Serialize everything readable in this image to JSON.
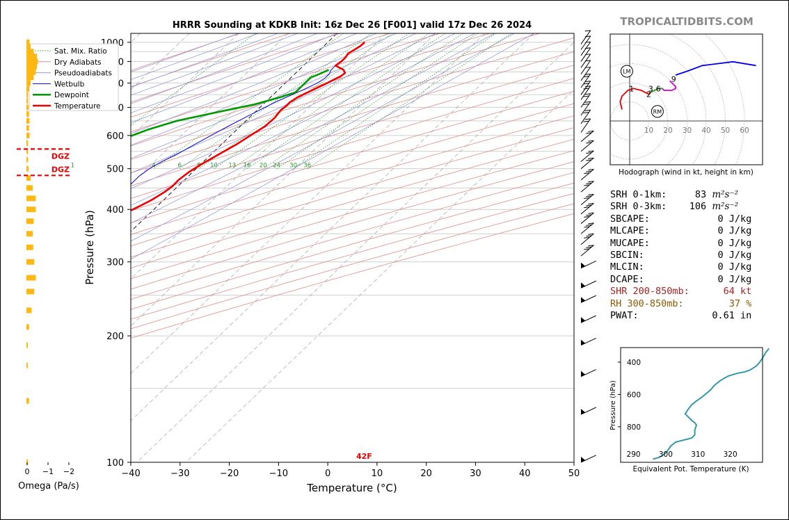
{
  "chart_data": [
    {
      "type": "skewt",
      "title": "HRRR Sounding at KDKB Init: 16z Dec 26 [F001] valid 17z Dec 26 2024",
      "xlabel": "Temperature (°C)",
      "ylabel": "Pressure (hPa)",
      "xlim": [
        -40,
        50
      ],
      "ylim": [
        1050,
        100
      ],
      "x_ticks": [
        "−40",
        "−30",
        "−20",
        "−10",
        "0",
        "10",
        "20",
        "30",
        "40",
        "50"
      ],
      "y_ticks": [
        "100",
        "200",
        "300",
        "400",
        "500",
        "600",
        "700",
        "800",
        "900",
        "1000"
      ],
      "legend": [
        "Sat. Mix. Ratio",
        "Dry Adiabats",
        "Pseudoadiabats",
        "Wetbulb",
        "Dewpoint",
        "Temperature"
      ],
      "legend_position": "top-left",
      "mixing_ratio_labels": [
        "1",
        "4",
        "6",
        "8",
        "10",
        "13",
        "16",
        "20",
        "24",
        "30",
        "36"
      ],
      "surface_temp_label": "42F",
      "series": [
        {
          "name": "Temperature",
          "color": "#ee0000",
          "points": [
            [
              7.5,
              1000
            ],
            [
              7.4,
              980
            ],
            [
              7,
              960
            ],
            [
              6.5,
              940
            ],
            [
              6.8,
              920
            ],
            [
              6.8,
              900
            ],
            [
              6.5,
              880
            ],
            [
              9,
              860
            ],
            [
              10,
              845
            ],
            [
              9.8,
              830
            ],
            [
              8.5,
              800
            ],
            [
              7,
              770
            ],
            [
              5.5,
              740
            ],
            [
              5,
              720
            ],
            [
              5,
              705
            ],
            [
              4.8,
              690
            ],
            [
              5.2,
              660
            ],
            [
              5,
              630
            ],
            [
              4,
              600
            ],
            [
              3,
              570
            ],
            [
              1.5,
              540
            ],
            [
              0,
              510
            ],
            [
              -0.8,
              490
            ],
            [
              -1.2,
              470
            ],
            [
              -1.1,
              455
            ],
            [
              -1.5,
              440
            ],
            [
              -2.5,
              420
            ],
            [
              -4.2,
              400
            ],
            [
              -6.5,
              380
            ],
            [
              -10,
              350
            ],
            [
              -14,
              320
            ],
            [
              -17,
              300
            ],
            [
              -20,
              280
            ],
            [
              -23,
              260
            ],
            [
              -27,
              240
            ],
            [
              -32,
              220
            ],
            [
              -34.5,
              200
            ],
            [
              -35.5,
              190
            ],
            [
              -37,
              175
            ],
            [
              -40,
              160
            ],
            [
              -46,
              145
            ],
            [
              -50,
              135
            ],
            [
              -54,
              125
            ],
            [
              -58,
              110
            ],
            [
              -61,
              100
            ]
          ]
        },
        {
          "name": "Dewpoint",
          "color": "#009900",
          "points": [
            [
              6,
              860
            ],
            [
              5,
              840
            ],
            [
              4,
              825
            ],
            [
              4,
              805
            ],
            [
              4,
              780
            ],
            [
              4,
              760
            ],
            [
              2,
              740
            ],
            [
              -2,
              710
            ],
            [
              -8,
              680
            ],
            [
              -14,
              650
            ],
            [
              -18,
              620
            ],
            [
              -22,
              580
            ],
            [
              -25,
              550
            ],
            [
              -28,
              520
            ],
            [
              -31,
              500
            ],
            [
              -34,
              480
            ],
            [
              -37,
              465
            ],
            [
              -45,
              455
            ],
            [
              -38,
              440
            ],
            [
              -30,
              420
            ],
            [
              -25,
              405
            ],
            [
              -20,
              390
            ],
            [
              -20,
              370
            ],
            [
              -23,
              340
            ],
            [
              -26,
              300
            ],
            [
              -29,
              280
            ],
            [
              -33,
              250
            ],
            [
              -36,
              230
            ],
            [
              -41,
              200
            ],
            [
              -50,
              170
            ],
            [
              -58,
              150
            ],
            [
              -65,
              130
            ],
            [
              -73,
              115
            ],
            [
              -80,
              100
            ]
          ]
        },
        {
          "name": "Wetbulb",
          "color": "#0000dd",
          "points": [
            [
              6.5,
              880
            ],
            [
              6.5,
              860
            ],
            [
              7,
              840
            ],
            [
              7,
              820
            ],
            [
              6.5,
              800
            ],
            [
              5,
              770
            ],
            [
              3.5,
              745
            ],
            [
              2,
              720
            ],
            [
              0.5,
              690
            ],
            [
              -1,
              660
            ],
            [
              -2.5,
              630
            ],
            [
              -4,
              600
            ],
            [
              -5.5,
              570
            ],
            [
              -7,
              540
            ],
            [
              -8.5,
              520
            ],
            [
              -9.5,
              500
            ],
            [
              -10,
              480
            ],
            [
              -10,
              460
            ],
            [
              -9.5,
              445
            ],
            [
              -10.5,
              430
            ],
            [
              -12,
              415
            ],
            [
              -14,
              400
            ],
            [
              -16,
              380
            ],
            [
              -18.5,
              360
            ],
            [
              -21,
              340
            ],
            [
              -24,
              320
            ],
            [
              -27,
              300
            ],
            [
              -30,
              280
            ],
            [
              -33,
              260
            ],
            [
              -38,
              240
            ],
            [
              -42,
              220
            ],
            [
              -46,
              200
            ],
            [
              -50,
              180
            ],
            [
              -55,
              160
            ],
            [
              -58,
              145
            ],
            [
              -61,
              130
            ],
            [
              -63,
              115
            ],
            [
              -65,
              100
            ]
          ]
        }
      ]
    },
    {
      "type": "bar",
      "xlabel": "Omega (Pa/s)",
      "x_ticks": [
        "0",
        "−1",
        "−2"
      ],
      "dgz_label": "DGZ",
      "dgz_bounds_hpa": [
        482,
        557
      ],
      "profile": [
        [
          100,
          0.03
        ],
        [
          140,
          0.05
        ],
        [
          170,
          0.02
        ],
        [
          190,
          0.02
        ],
        [
          210,
          0.05
        ],
        [
          230,
          0.1
        ],
        [
          255,
          0.15
        ],
        [
          275,
          0.18
        ],
        [
          300,
          0.15
        ],
        [
          325,
          0.13
        ],
        [
          350,
          0.12
        ],
        [
          375,
          0.14
        ],
        [
          400,
          0.18
        ],
        [
          425,
          0.18
        ],
        [
          450,
          0.12
        ],
        [
          475,
          0.08
        ],
        [
          500,
          0.04
        ],
        [
          525,
          0.03
        ],
        [
          550,
          0.03
        ],
        [
          575,
          0.03
        ],
        [
          600,
          0.06
        ],
        [
          625,
          0.05
        ],
        [
          650,
          0.06
        ],
        [
          675,
          0.05
        ],
        [
          700,
          0.04
        ],
        [
          725,
          0.03
        ],
        [
          750,
          0.03
        ],
        [
          775,
          0.05
        ],
        [
          800,
          0.08
        ],
        [
          825,
          0.14
        ],
        [
          850,
          0.18
        ],
        [
          875,
          0.2
        ],
        [
          900,
          0.22
        ],
        [
          925,
          0.2
        ],
        [
          950,
          0.14
        ],
        [
          975,
          0.08
        ],
        [
          1000,
          0.06
        ]
      ]
    },
    {
      "type": "line",
      "title": "Hodograph (wind in kt, height in km)",
      "rings": [
        10,
        20,
        30,
        40,
        50,
        60
      ],
      "ring_labels": [
        "10",
        "20",
        "30",
        "40",
        "50",
        "60"
      ],
      "height_labels": [
        {
          "text": "1",
          "u": 1,
          "v": 17
        },
        {
          "text": "2",
          "u": 10,
          "v": 14
        },
        {
          "text": "3",
          "u": 11,
          "v": 17
        },
        {
          "text": "6",
          "u": 15,
          "v": 17
        },
        {
          "text": "9",
          "u": 23,
          "v": 22
        }
      ],
      "storm_motion": [
        {
          "text": "LM",
          "u": -1.5,
          "v": 26
        },
        {
          "text": "RM",
          "u": 14.5,
          "v": 5
        }
      ],
      "segments": [
        {
          "color": "#dd0000",
          "points": [
            [
              -4,
              6
            ],
            [
              -5,
              10
            ],
            [
              -4,
              13
            ],
            [
              -1,
              16
            ],
            [
              2,
              17
            ],
            [
              6,
              16
            ],
            [
              8,
              15
            ],
            [
              10,
              14
            ],
            [
              11,
              15
            ],
            [
              13,
              16
            ],
            [
              15,
              17
            ],
            [
              17,
              17
            ]
          ]
        },
        {
          "color": "#22aa22",
          "points": [
            [
              11,
              15
            ],
            [
              13,
              16
            ],
            [
              15,
              17
            ],
            [
              17,
              17
            ]
          ]
        },
        {
          "color": "#cc00cc",
          "points": [
            [
              17,
              17
            ],
            [
              18,
              16
            ],
            [
              20,
              16
            ],
            [
              22,
              16
            ],
            [
              24,
              17
            ],
            [
              24,
              18
            ],
            [
              23,
              19
            ],
            [
              22,
              20
            ],
            [
              21,
              21
            ]
          ]
        },
        {
          "color": "#0000ee",
          "points": [
            [
              24,
              24
            ],
            [
              30,
              26
            ],
            [
              38,
              29
            ],
            [
              54,
              31
            ],
            [
              66,
              29
            ]
          ]
        }
      ]
    },
    {
      "type": "line",
      "xlabel": "Equivalent Pot. Temperature (K)",
      "ylabel": "Pressure (hPa)",
      "x_ticks": [
        "290",
        "300",
        "310",
        "320"
      ],
      "y_ticks": [
        "400",
        "600",
        "800"
      ],
      "xlim": [
        286,
        330
      ],
      "ylim": [
        1020,
        310
      ],
      "color": "#3399aa",
      "points": [
        [
          296,
          1000
        ],
        [
          298,
          990
        ],
        [
          299.5,
          970
        ],
        [
          300.5,
          950
        ],
        [
          301.5,
          920
        ],
        [
          303,
          895
        ],
        [
          306,
          880
        ],
        [
          308,
          870
        ],
        [
          309,
          850
        ],
        [
          309,
          820
        ],
        [
          309.5,
          790
        ],
        [
          309,
          775
        ],
        [
          308,
          760
        ],
        [
          307,
          740
        ],
        [
          306,
          720
        ],
        [
          307,
          690
        ],
        [
          308,
          665
        ],
        [
          309.5,
          640
        ],
        [
          311,
          620
        ],
        [
          312.5,
          595
        ],
        [
          314,
          570
        ],
        [
          315,
          545
        ],
        [
          316.5,
          520
        ],
        [
          318,
          500
        ],
        [
          319.5,
          485
        ],
        [
          322,
          470
        ],
        [
          324.5,
          460
        ],
        [
          326,
          450
        ],
        [
          327,
          438
        ],
        [
          328,
          425
        ],
        [
          328.7,
          410
        ],
        [
          329.3,
          395
        ],
        [
          330,
          375
        ],
        [
          331,
          340
        ],
        [
          332,
          315
        ]
      ]
    }
  ],
  "watermark": "TROPICALTIDBITS.COM",
  "stats": [
    {
      "label": "SRH 0-1km:",
      "value": "83",
      "unit": "m²s⁻²",
      "color": "#000000"
    },
    {
      "label": "SRH 0-3km:",
      "value": "106",
      "unit": "m²s⁻²",
      "color": "#000000"
    },
    {
      "label": "SBCAPE:",
      "value": "0 J/kg",
      "color": "#000000"
    },
    {
      "label": "MLCAPE:",
      "value": "0 J/kg",
      "color": "#000000"
    },
    {
      "label": "MUCAPE:",
      "value": "0 J/kg",
      "color": "#000000"
    },
    {
      "label": "SBCIN:",
      "value": "0 J/kg",
      "color": "#000000"
    },
    {
      "label": "MLCIN:",
      "value": "0 J/kg",
      "color": "#000000"
    },
    {
      "label": "DCAPE:",
      "value": "0 J/kg",
      "color": "#000000"
    },
    {
      "label": "SHR 200-850mb:",
      "value": "64 kt",
      "color": "#aa2222"
    },
    {
      "label": "RH 300-850mb:",
      "value": "37 %",
      "color": "#8b5a00"
    },
    {
      "label": "PWAT:",
      "value": "0.61 in",
      "color": "#000000"
    }
  ],
  "colors": {
    "temperature": "#ee0000",
    "dewpoint": "#009900",
    "wetbulb": "#0000dd",
    "dry_adiabat": "#e08a8a",
    "pseudoadiabat": "#9a9ad8",
    "mixing_ratio": "#2e9a2e",
    "isotherm": "#7a7a7a",
    "omega_bar": "#fdb813",
    "dgz": "#ee0000",
    "theta_e": "#3399aa"
  }
}
